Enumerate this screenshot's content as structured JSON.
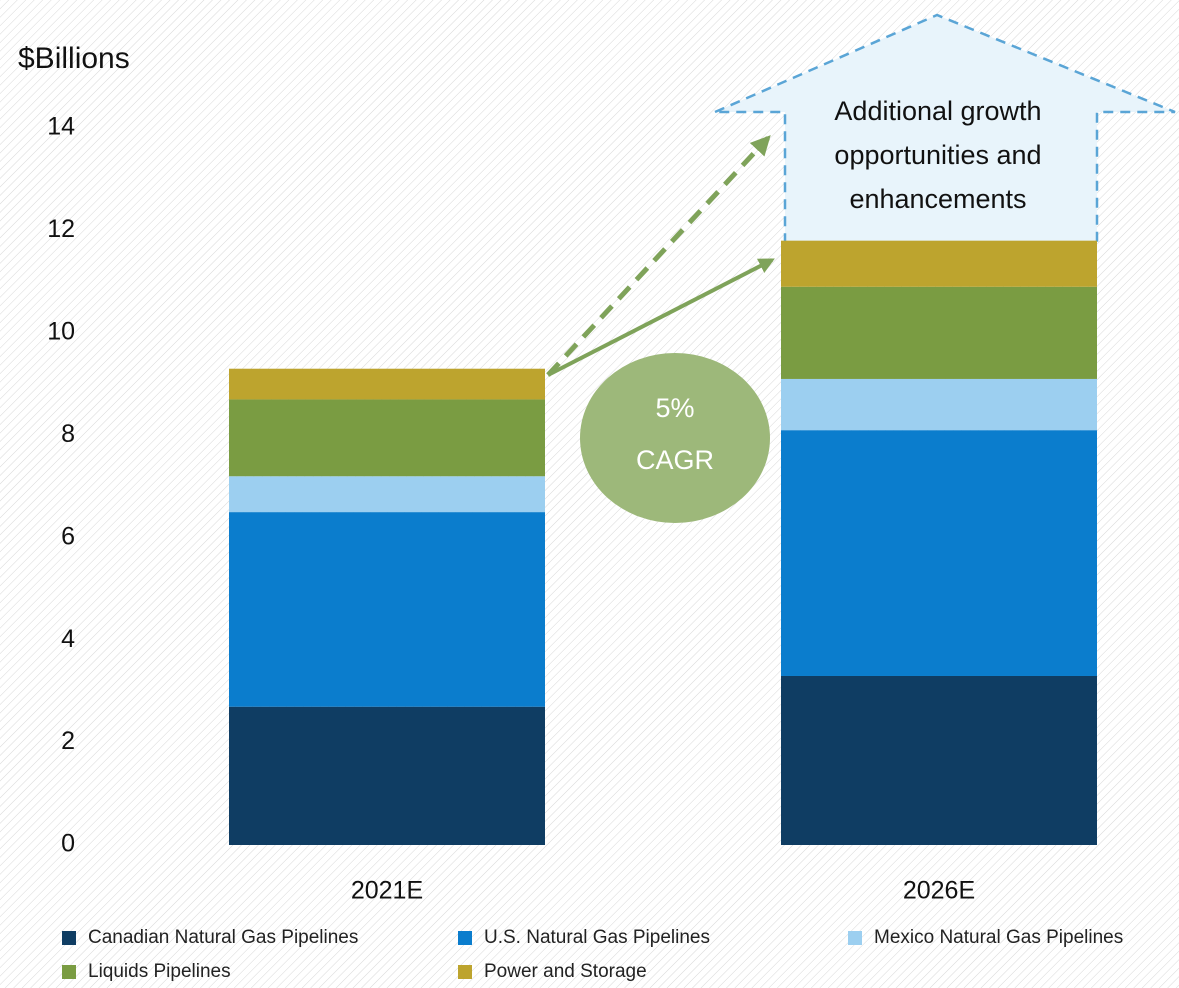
{
  "chart_data": {
    "type": "stacked_bar",
    "y_label": "$Billions",
    "categories": [
      "2021E",
      "2026E"
    ],
    "series": [
      {
        "name": "Canadian Natural Gas Pipelines",
        "color": "#0f3d63",
        "values": [
          2.7,
          3.3
        ]
      },
      {
        "name": "U.S. Natural Gas Pipelines",
        "color": "#0b7dcd",
        "values": [
          3.8,
          4.8
        ]
      },
      {
        "name": "Mexico Natural Gas Pipelines",
        "color": "#9ccff0",
        "values": [
          0.7,
          1.0
        ]
      },
      {
        "name": "Liquids Pipelines",
        "color": "#7a9c42",
        "values": [
          1.5,
          1.8
        ]
      },
      {
        "name": "Power and Storage",
        "color": "#bda42e",
        "values": [
          0.6,
          0.9
        ]
      }
    ],
    "ylim": [
      0,
      14
    ],
    "yticks": [
      0,
      2,
      4,
      6,
      8,
      10,
      12,
      14
    ],
    "grid": false,
    "annotations": {
      "growth": [
        "Additional growth",
        "opportunities and",
        "enhancements"
      ],
      "cagr": [
        "5%",
        "CAGR"
      ]
    }
  }
}
